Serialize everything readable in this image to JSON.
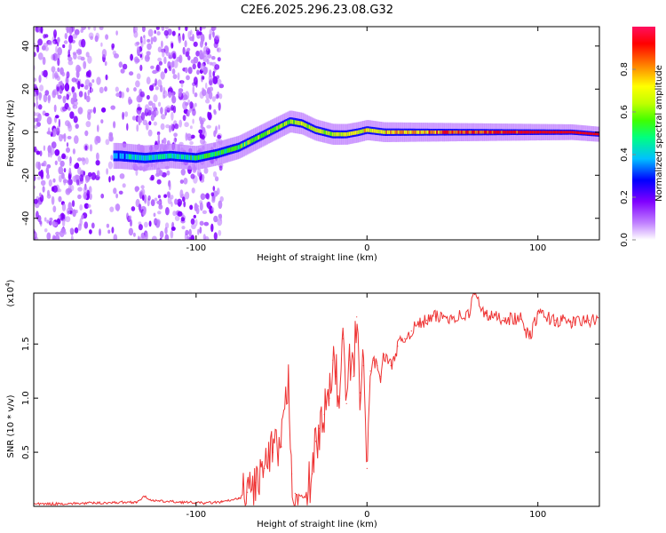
{
  "figure_title": "C2E6.2025.296.23.08.G32",
  "chart_data": [
    {
      "type": "heatmap",
      "title": "C2E6.2025.296.23.08.G32",
      "xlabel": "Height of straight line (km)",
      "ylabel": "Frequency (Hz)",
      "xlim": [
        -195,
        136
      ],
      "ylim": [
        -50,
        49
      ],
      "x_ticks": [
        -100,
        0,
        100
      ],
      "x_tick_labels": [
        "-100",
        "0",
        "100"
      ],
      "y_ticks": [
        -40,
        -20,
        0,
        20,
        40
      ],
      "y_tick_labels": [
        "-40",
        "-20",
        "0",
        "20",
        "40"
      ],
      "colorbar": {
        "label": "Normalized spectral amplitude",
        "range": [
          0.0,
          1.0
        ],
        "ticks": [
          0.0,
          0.2,
          0.4,
          0.6,
          0.8
        ],
        "tick_labels": [
          "0.0",
          "0.2",
          "0.4",
          "0.6",
          "0.8"
        ],
        "colors": [
          "#ffffff",
          "#c080ff",
          "#8000ff",
          "#0000ff",
          "#00c0ff",
          "#00ff80",
          "#40ff00",
          "#c0ff00",
          "#ffff00",
          "#ff8000",
          "#ff0000",
          "#ff1060"
        ]
      },
      "ridge": {
        "x": [
          -145,
          -130,
          -115,
          -100,
          -88,
          -75,
          -60,
          -50,
          -45,
          -38,
          -30,
          -20,
          -12,
          -5,
          0,
          10,
          40,
          80,
          120,
          136
        ],
        "freq_hz": [
          -11,
          -12,
          -11,
          -12,
          -10,
          -7,
          -1,
          3,
          5,
          4,
          1,
          -1,
          -1,
          0,
          1,
          0,
          0,
          0,
          0,
          -1
        ]
      },
      "noise_region_x": [
        -195,
        -85
      ]
    },
    {
      "type": "line",
      "xlabel": "Height of straight line (km)",
      "ylabel": "SNR (10 * v/v)",
      "y_exponent": "(x10^4)",
      "xlim": [
        -195,
        136
      ],
      "ylim": [
        0,
        1.97
      ],
      "x_ticks": [
        -100,
        0,
        100
      ],
      "x_tick_labels": [
        "-100",
        "0",
        "100"
      ],
      "y_ticks": [
        0.5,
        1.0,
        1.5
      ],
      "y_tick_labels": [
        "0.5",
        "1.0",
        "1.5"
      ],
      "series": [
        {
          "name": "SNR",
          "color": "#ee3333",
          "x": [
            -195,
            -160,
            -135,
            -130,
            -125,
            -110,
            -95,
            -85,
            -75,
            -70,
            -65,
            -60,
            -55,
            -50,
            -46,
            -44,
            -42,
            -40,
            -36,
            -32,
            -30,
            -28,
            -25,
            -22,
            -20,
            -18,
            -16,
            -14,
            -12,
            -10,
            -8,
            -6,
            -4,
            -2,
            0,
            2,
            4,
            6,
            8,
            10,
            14,
            18,
            22,
            26,
            30,
            35,
            40,
            50,
            60,
            62,
            70,
            80,
            90,
            95,
            100,
            110,
            120,
            130,
            136
          ],
          "y": [
            0.02,
            0.03,
            0.04,
            0.09,
            0.05,
            0.04,
            0.03,
            0.04,
            0.07,
            0.13,
            0.22,
            0.35,
            0.5,
            0.55,
            1.17,
            0.3,
            0.12,
            0.1,
            0.08,
            0.3,
            0.6,
            0.72,
            0.85,
            1.0,
            1.35,
            1.2,
            1.0,
            1.55,
            0.95,
            1.35,
            1.2,
            1.75,
            1.05,
            1.3,
            0.35,
            1.25,
            1.35,
            1.3,
            1.2,
            1.4,
            1.3,
            1.48,
            1.55,
            1.62,
            1.68,
            1.72,
            1.75,
            1.75,
            1.77,
            1.97,
            1.76,
            1.74,
            1.73,
            1.55,
            1.78,
            1.72,
            1.7,
            1.72,
            1.7
          ]
        }
      ]
    }
  ]
}
